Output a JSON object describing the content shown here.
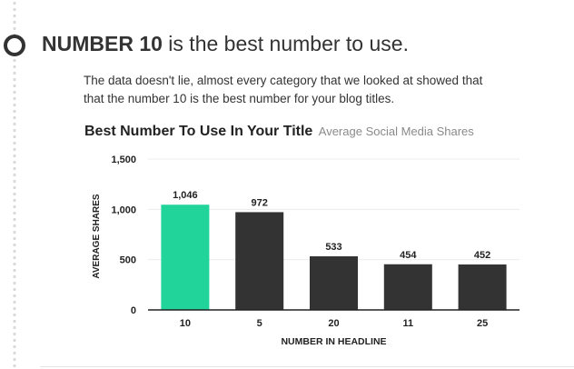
{
  "headline": {
    "strong": "NUMBER 10",
    "rest": " is the best number to use."
  },
  "intro": {
    "text": "The data doesn't lie, almost every category that we looked at showed that that the number 10 is the best number for your blog titles."
  },
  "colors": {
    "highlight_bar": "#20d49a",
    "default_bar": "#333333",
    "gridline": "#ececec",
    "axis": "#222222"
  },
  "chart_data": {
    "type": "bar",
    "title": "Best Number To Use In Your Title",
    "subtitle": "Average Social Media Shares",
    "xlabel": "NUMBER IN HEADLINE",
    "ylabel": "AVERAGE SHARES",
    "categories": [
      "10",
      "5",
      "20",
      "11",
      "25"
    ],
    "values": [
      1046,
      972,
      533,
      454,
      452
    ],
    "value_labels": [
      "1,046",
      "972",
      "533",
      "454",
      "452"
    ],
    "highlight_index": 0,
    "ylim": [
      0,
      1500
    ],
    "yticks": [
      0,
      500,
      1000,
      1500
    ],
    "ytick_labels": [
      "0",
      "500",
      "1,000",
      "1,500"
    ],
    "grid": true,
    "legend": "none"
  }
}
